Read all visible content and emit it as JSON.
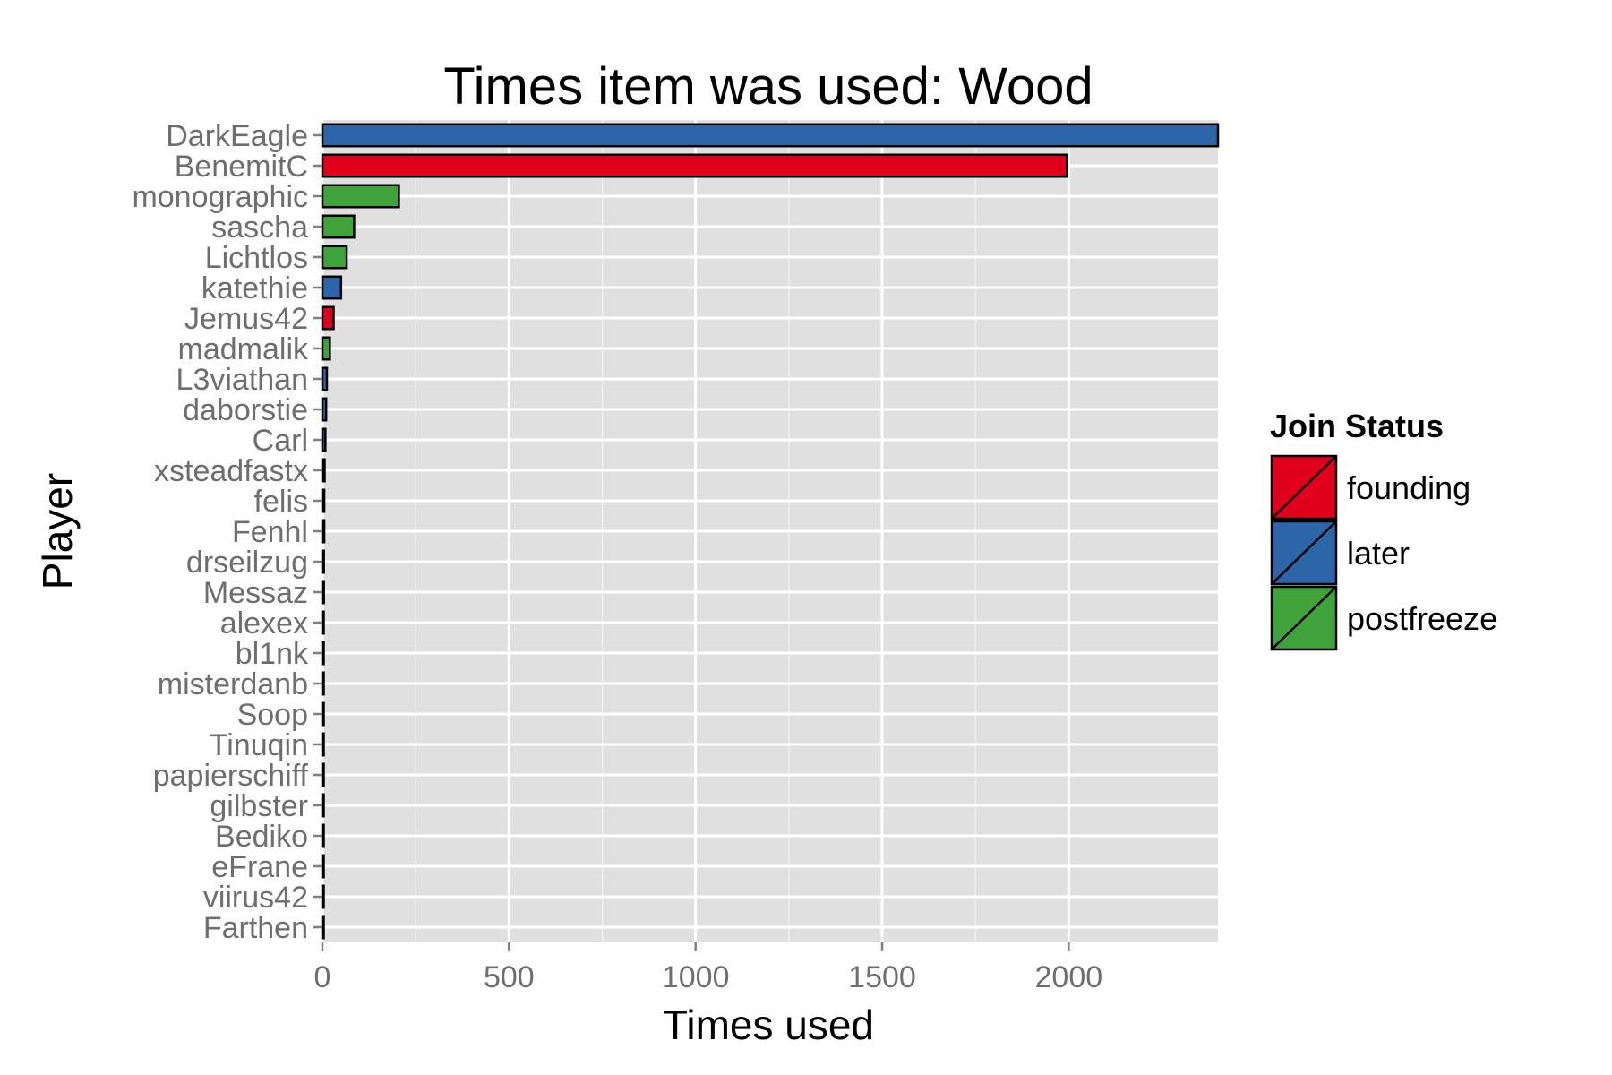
{
  "chart_data": {
    "type": "bar",
    "orientation": "horizontal",
    "title": "Times item was used: Wood",
    "xlabel": "Times used",
    "ylabel": "Player",
    "xlim": [
      0,
      2400
    ],
    "x_ticks": [
      0,
      500,
      1000,
      1500,
      2000
    ],
    "grid": true,
    "legend_position": "right",
    "legend_title": "Join Status",
    "groups": [
      {
        "name": "founding",
        "color": "#e0001b"
      },
      {
        "name": "later",
        "color": "#2c65a8"
      },
      {
        "name": "postfreeze",
        "color": "#40a23b"
      }
    ],
    "categories": [
      "DarkEagle",
      "BenemitC",
      "monographic",
      "sascha",
      "Lichtlos",
      "katethie",
      "Jemus42",
      "madmalik",
      "L3viathan",
      "daborstie",
      "Carl",
      "xsteadfastx",
      "felis",
      "Fenhl",
      "drseilzug",
      "Messaz",
      "alexex",
      "bl1nk",
      "misterdanb",
      "Soop",
      "Tinuqin",
      "papierschiff",
      "gilbster",
      "Bediko",
      "eFrane",
      "viirus42",
      "Farthen"
    ],
    "values": [
      2400,
      1995,
      205,
      85,
      65,
      50,
      30,
      20,
      12,
      10,
      8,
      6,
      5,
      5,
      4,
      4,
      3,
      3,
      3,
      3,
      2,
      2,
      2,
      2,
      2,
      1,
      1
    ],
    "status": [
      "later",
      "founding",
      "postfreeze",
      "postfreeze",
      "postfreeze",
      "later",
      "founding",
      "postfreeze",
      "later",
      "later",
      "later",
      "later",
      "later",
      "later",
      "later",
      "later",
      "later",
      "later",
      "later",
      "later",
      "later",
      "later",
      "later",
      "later",
      "later",
      "later",
      "later"
    ]
  },
  "colors": {
    "panel_background": "#e0e0e0",
    "grid": "#ffffff",
    "bar_outline": "#000000",
    "tick_text": "#6e6e6e"
  }
}
